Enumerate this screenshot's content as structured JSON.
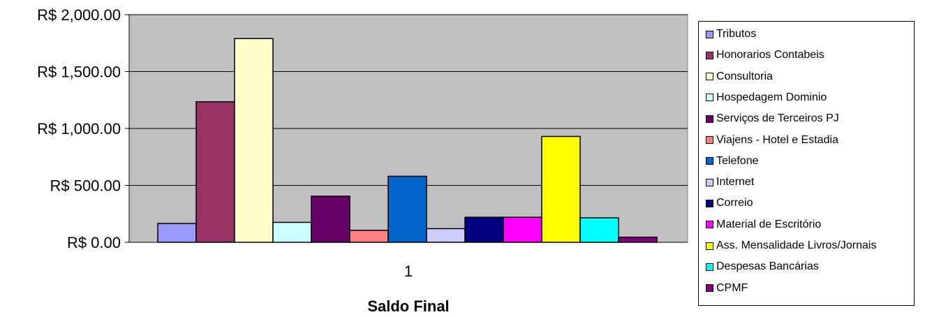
{
  "chart_data": {
    "type": "bar",
    "title": "",
    "xlabel": "Saldo Final",
    "ylabel": "",
    "categories": [
      "1"
    ],
    "ylim": [
      0,
      2000
    ],
    "yticks": [
      0,
      500,
      1000,
      1500,
      2000
    ],
    "ytick_labels": [
      "R$ 0.00",
      "R$ 500.00",
      "R$ 1,000.00",
      "R$ 1,500.00",
      "R$ 2,000.00"
    ],
    "grid": true,
    "plot_background": "#c0c0c0",
    "legend_position": "right",
    "series": [
      {
        "name": "Tributos",
        "values": [
          165
        ],
        "color": "#9999ff"
      },
      {
        "name": "Honorarios Contabeis",
        "values": [
          1235
        ],
        "color": "#993366"
      },
      {
        "name": "Consultoria",
        "values": [
          1790
        ],
        "color": "#ffffcc"
      },
      {
        "name": "Hospedagem Dominio",
        "values": [
          175
        ],
        "color": "#ccffff"
      },
      {
        "name": "Serviços de Terceiros PJ",
        "values": [
          405
        ],
        "color": "#660066"
      },
      {
        "name": "Viajens - Hotel e Estadia",
        "values": [
          105
        ],
        "color": "#ff8080"
      },
      {
        "name": "Telefone",
        "values": [
          580
        ],
        "color": "#0066cc"
      },
      {
        "name": "Internet",
        "values": [
          120
        ],
        "color": "#ccccff"
      },
      {
        "name": "Correio",
        "values": [
          220
        ],
        "color": "#000080"
      },
      {
        "name": "Material de Escritório",
        "values": [
          220
        ],
        "color": "#ff00ff"
      },
      {
        "name": "Ass. Mensalidade Livros/Jornais",
        "values": [
          930
        ],
        "color": "#ffff00"
      },
      {
        "name": "Despesas Bancárias",
        "values": [
          215
        ],
        "color": "#00ffff"
      },
      {
        "name": "CPMF",
        "values": [
          45
        ],
        "color": "#800080"
      }
    ]
  }
}
